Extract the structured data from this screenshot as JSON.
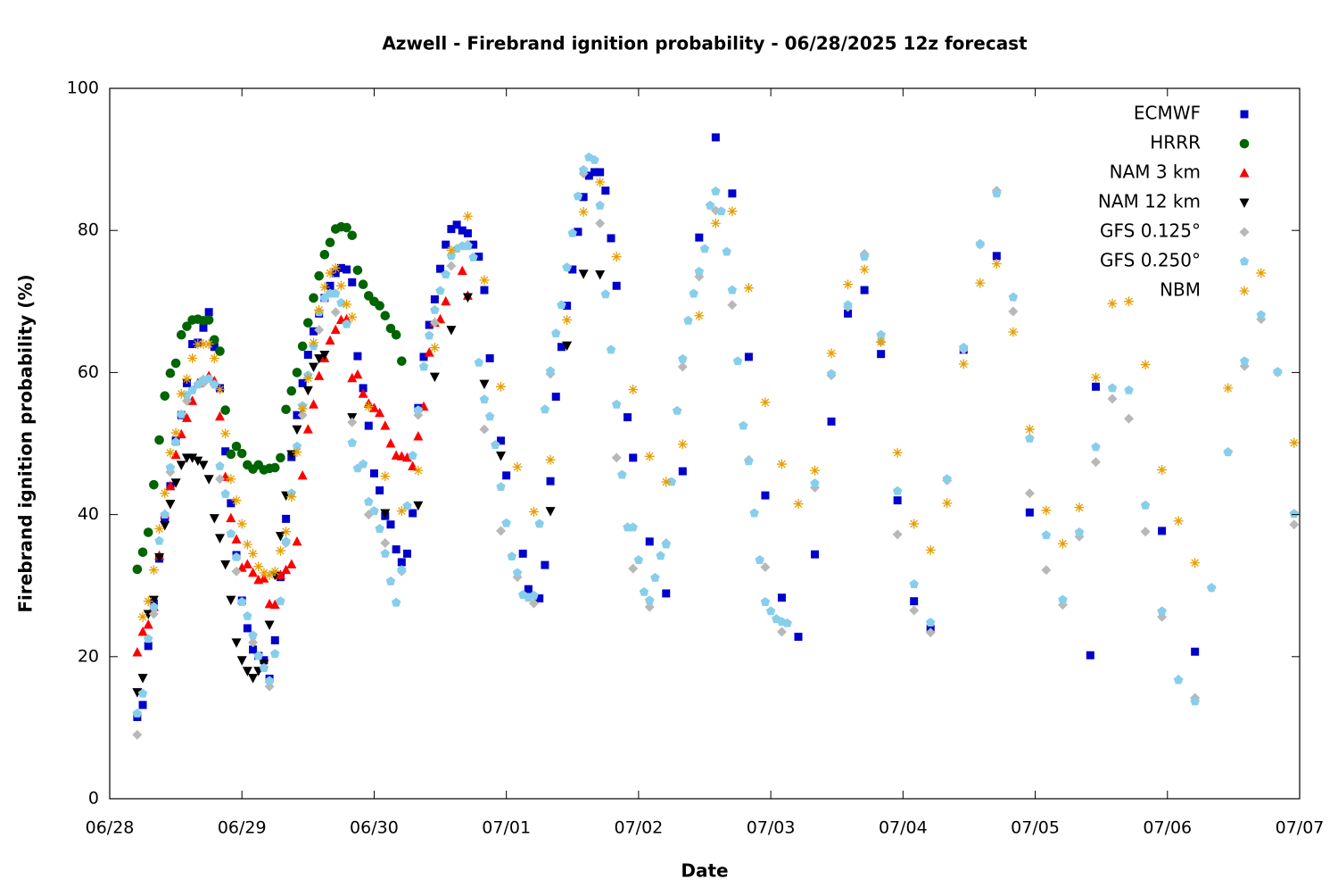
{
  "chart_data": {
    "type": "scatter",
    "title": "Azwell - Firebrand ignition probability - 06/28/2025 12z forecast",
    "x_label": "Date",
    "y_label": "Firebrand ignition probability (%)",
    "xlim": [
      0,
      216
    ],
    "xticks": [
      {
        "value": 0,
        "label": "06/28"
      },
      {
        "value": 24,
        "label": "06/29"
      },
      {
        "value": 48,
        "label": "06/30"
      },
      {
        "value": 72,
        "label": "07/01"
      },
      {
        "value": 96,
        "label": "07/02"
      },
      {
        "value": 120,
        "label": "07/03"
      },
      {
        "value": 144,
        "label": "07/04"
      },
      {
        "value": 168,
        "label": "07/05"
      },
      {
        "value": 192,
        "label": "07/06"
      },
      {
        "value": 216,
        "label": "07/07"
      }
    ],
    "ylim": [
      0,
      100
    ],
    "yticks": [
      0,
      20,
      40,
      60,
      80,
      100
    ],
    "grid": false,
    "legend": "top-right",
    "series": [
      {
        "name": "ECMWF",
        "color": "#0000cc",
        "marker": "square",
        "x": [
          5,
          6,
          7,
          8,
          9,
          10,
          11,
          12,
          13,
          14,
          15,
          16,
          17,
          18,
          19,
          20,
          21,
          22,
          23,
          24,
          25,
          26,
          27,
          28,
          29,
          30,
          31,
          32,
          33,
          34,
          35,
          36,
          37,
          38,
          39,
          40,
          41,
          42,
          43,
          44,
          45,
          46,
          47,
          48,
          49,
          50,
          51,
          52,
          53,
          54,
          55,
          56,
          57,
          58,
          59,
          60,
          61,
          62,
          63,
          64,
          65,
          66,
          67,
          68,
          69,
          71,
          72,
          75,
          76,
          78,
          79,
          80,
          81,
          82,
          83,
          84,
          85,
          86,
          87,
          88,
          89,
          90,
          91,
          92,
          94,
          95,
          98,
          101,
          104,
          107,
          110,
          113,
          116,
          119,
          122,
          125,
          128,
          131,
          134,
          137,
          140,
          143,
          146,
          149,
          155,
          161,
          167,
          178,
          179,
          191,
          197
        ],
        "values": [
          11.5,
          13.2,
          21.5,
          27.5,
          33.8,
          39.5,
          44,
          50.4,
          54,
          58.5,
          64,
          64.2,
          66.3,
          68.5,
          63.6,
          57.8,
          48.9,
          41.6,
          34.3,
          27.9,
          24,
          21,
          20.1,
          19.5,
          16.9,
          22.3,
          31.2,
          39.4,
          48.1,
          54,
          58.5,
          62.5,
          65.8,
          68.3,
          70.5,
          72.2,
          74,
          74.7,
          74.5,
          72.7,
          62.3,
          57.8,
          52.5,
          45.8,
          43.4,
          39.8,
          38.6,
          35.1,
          33.3,
          34.5,
          40.2,
          55,
          62.2,
          66.7,
          70.3,
          74.6,
          78,
          80.2,
          80.8,
          80,
          79.6,
          78,
          76.3,
          71.6,
          62,
          50.4,
          45.5,
          34.5,
          29.5,
          28.2,
          32.9,
          44.7,
          56.6,
          63.6,
          69.4,
          74.5,
          79.8,
          84.7,
          87.7,
          88.2,
          88.2,
          85.6,
          78.9,
          72.2,
          53.7,
          48,
          36.2,
          28.9,
          46.1,
          79,
          93.1,
          85.2,
          62.2,
          42.7,
          28.3,
          22.8,
          34.4,
          53.1,
          68.3,
          71.6,
          62.6,
          42,
          27.8,
          23.9,
          63.2,
          76.4,
          40.3,
          20.2,
          58,
          37.7,
          20.7
        ]
      },
      {
        "name": "HRRR",
        "color": "#006400",
        "marker": "circle",
        "x": [
          5,
          6,
          7,
          8,
          9,
          10,
          11,
          12,
          13,
          14,
          15,
          16,
          17,
          18,
          19,
          20,
          21,
          22,
          23,
          24,
          25,
          26,
          27,
          28,
          29,
          30,
          31,
          32,
          33,
          34,
          35,
          36,
          37,
          38,
          39,
          40,
          41,
          42,
          43,
          44,
          45,
          46,
          47,
          48,
          49,
          50,
          51,
          52,
          53
        ],
        "values": [
          32.3,
          34.7,
          37.5,
          44.2,
          50.5,
          56.7,
          59.9,
          61.3,
          65.3,
          66.5,
          67.4,
          67.5,
          67.3,
          67.4,
          64.6,
          63,
          54.7,
          48.5,
          49.6,
          48.6,
          47,
          46.4,
          47,
          46.3,
          46.5,
          46.6,
          48,
          54.8,
          57.4,
          60,
          63.7,
          67,
          70.5,
          73.6,
          76.6,
          78.3,
          80.2,
          80.5,
          80.4,
          79.3,
          74.4,
          72.4,
          70.8,
          70,
          69.4,
          68,
          66.2,
          65.3,
          61.6
        ]
      },
      {
        "name": "NAM 3 km",
        "color": "#ff0000",
        "marker": "triangle-up",
        "x": [
          5,
          6,
          7,
          8,
          9,
          10,
          11,
          12,
          13,
          14,
          15,
          16,
          17,
          18,
          19,
          20,
          21,
          22,
          23,
          24,
          25,
          26,
          27,
          28,
          29,
          30,
          31,
          32,
          33,
          34,
          35,
          36,
          37,
          38,
          39,
          40,
          41,
          42,
          43,
          44,
          45,
          46,
          47,
          48,
          49,
          50,
          51,
          52,
          53,
          54,
          55,
          56,
          57,
          58,
          59,
          60,
          61,
          64,
          65
        ],
        "values": [
          20.6,
          23.5,
          24.5,
          27,
          34.2,
          40,
          44,
          48.4,
          51.3,
          53.6,
          56,
          58.5,
          59,
          59.5,
          58.8,
          53.8,
          45.3,
          39.5,
          36.5,
          32.5,
          33,
          31.8,
          30.8,
          31,
          27.4,
          27.3,
          31.5,
          32.2,
          33,
          36.2,
          45.5,
          52,
          55.5,
          59.5,
          62,
          64.5,
          66,
          67.4,
          67.5,
          59.2,
          59.7,
          57,
          55.6,
          55,
          54.3,
          52.5,
          50,
          48.3,
          48.2,
          48,
          46.8,
          51,
          55.2,
          62.8,
          67,
          67.5,
          70,
          74.3,
          70.8
        ]
      },
      {
        "name": "NAM 12 km",
        "color": "#000000",
        "marker": "triangle-down",
        "x": [
          5,
          6,
          7,
          8,
          9,
          10,
          11,
          12,
          13,
          14,
          15,
          16,
          17,
          18,
          19,
          20,
          21,
          22,
          23,
          24,
          25,
          26,
          27,
          28,
          29,
          30,
          31,
          32,
          33,
          34,
          35,
          36,
          37,
          38,
          39,
          44,
          50,
          56,
          59,
          62,
          65,
          68,
          71,
          80,
          83,
          86,
          89
        ],
        "values": [
          15,
          17,
          26,
          28,
          34,
          38.5,
          41.5,
          44.5,
          47,
          48,
          48,
          47.6,
          47,
          45,
          39.5,
          36.7,
          33,
          28,
          22,
          19.5,
          18,
          17,
          18,
          19,
          24.5,
          31.5,
          37,
          42.7,
          48.5,
          52,
          55,
          57.5,
          60.8,
          62,
          62.5,
          53.7,
          40.2,
          41.3,
          59.4,
          66,
          70.6,
          58.4,
          48.3,
          40.5,
          63.8,
          73.9,
          73.8
        ]
      },
      {
        "name": "GFS 0.125°",
        "color": "#b8b8b8",
        "marker": "diamond",
        "x": [
          5,
          8,
          11,
          14,
          17,
          20,
          23,
          26,
          29,
          32,
          35,
          38,
          41,
          44,
          47,
          50,
          53,
          56,
          59,
          62,
          65,
          68,
          71,
          74,
          77,
          80,
          83,
          86,
          89,
          92,
          95,
          98,
          101,
          104,
          107,
          110,
          113,
          116,
          119,
          122,
          128,
          131,
          134,
          137,
          140,
          143,
          146,
          149,
          152,
          155,
          158,
          161,
          164,
          167,
          170,
          173,
          176,
          179,
          182,
          185,
          188,
          191,
          194,
          197,
          200,
          203,
          206,
          209,
          212,
          215
        ],
        "values": [
          9,
          26,
          46,
          56,
          58.5,
          45,
          32,
          22,
          15.8,
          36,
          54,
          66,
          68.5,
          53,
          40,
          36,
          32,
          54,
          67,
          75,
          78,
          52,
          37.7,
          31.2,
          27.5,
          59.8,
          74.8,
          88,
          81,
          48,
          32.4,
          27,
          36,
          60.8,
          73.5,
          82.8,
          69.5,
          47.7,
          32.6,
          23.5,
          43.8,
          59.6,
          69.2,
          76.7,
          64.3,
          37.2,
          26.5,
          23.4,
          44.8,
          63.2,
          78,
          85.6,
          68.6,
          43,
          32.2,
          27.3,
          36.9,
          47.4,
          56.3,
          53.5,
          37.6,
          25.6,
          16.8,
          14.2,
          29.7,
          48.8,
          60.9,
          67.5,
          60,
          38.6
        ]
      },
      {
        "name": "GFS 0.250°",
        "color": "#87ceeb",
        "marker": "pentagon",
        "x": [
          5,
          6,
          7,
          8,
          9,
          10,
          11,
          12,
          13,
          14,
          15,
          16,
          17,
          18,
          19,
          20,
          21,
          22,
          23,
          24,
          25,
          26,
          27,
          28,
          29,
          30,
          31,
          32,
          33,
          34,
          35,
          36,
          37,
          38,
          39,
          40,
          41,
          42,
          43,
          44,
          45,
          46,
          47,
          48,
          49,
          50,
          51,
          52,
          53,
          54,
          55,
          56,
          57,
          58,
          59,
          60,
          61,
          62,
          63,
          64,
          65,
          66,
          67,
          68,
          69,
          70,
          71,
          72,
          73,
          74,
          75,
          76,
          77,
          78,
          79,
          80,
          81,
          82,
          83,
          84,
          85,
          86,
          87,
          88,
          89,
          90,
          91,
          92,
          93,
          94,
          95,
          96,
          97,
          98,
          99,
          100,
          101,
          102,
          103,
          104,
          105,
          106,
          107,
          108,
          109,
          110,
          111,
          112,
          113,
          114,
          115,
          116,
          117,
          118,
          119,
          120,
          121,
          122,
          123,
          128,
          131,
          134,
          137,
          140,
          143,
          146,
          149,
          152,
          155,
          158,
          161,
          164,
          167,
          170,
          173,
          176,
          179,
          182,
          185,
          188,
          191,
          194,
          197,
          200,
          203,
          206,
          209,
          212,
          215
        ],
        "values": [
          12,
          14.8,
          22.5,
          27,
          36.3,
          40,
          46.6,
          50.2,
          54.1,
          56.8,
          57.5,
          58.3,
          59,
          59.1,
          58.3,
          46.8,
          42.9,
          37.3,
          34,
          27.7,
          25.7,
          23,
          20.1,
          18.4,
          16.6,
          20.4,
          27.8,
          36.2,
          43,
          49.6,
          55.3,
          59.6,
          63.7,
          68.5,
          70.5,
          71.1,
          71.1,
          69.8,
          66.8,
          50.1,
          46.5,
          47.1,
          41.8,
          40.5,
          38,
          34.5,
          30.6,
          27.6,
          32.2,
          41.2,
          48.3,
          54.7,
          60.8,
          65.2,
          68.8,
          71.5,
          73.8,
          76.4,
          77.4,
          77.8,
          77.8,
          76.2,
          61.4,
          56.2,
          53.8,
          49.8,
          43.9,
          38.8,
          34.1,
          31.8,
          28.7,
          28.3,
          28.6,
          38.7,
          54.8,
          60.2,
          65.5,
          69.5,
          74.8,
          79.6,
          84.8,
          88.5,
          90.3,
          89.9,
          83.5,
          71,
          63.2,
          55.5,
          45.6,
          38.2,
          38.2,
          33.6,
          29.1,
          27.9,
          31.1,
          34.2,
          35.8,
          44.6,
          54.6,
          61.9,
          67.3,
          71.1,
          74.2,
          77.4,
          83.5,
          85.5,
          82.7,
          77,
          71.6,
          61.6,
          52.5,
          47.5,
          40.2,
          33.6,
          27.7,
          26.4,
          25.3,
          24.9,
          24.7,
          44.4,
          59.8,
          69.5,
          76.3,
          65.3,
          43.3,
          30.2,
          24.8,
          45,
          63.5,
          78.1,
          85.2,
          70.6,
          50.7,
          37.1,
          28,
          37.5,
          49.5,
          57.8,
          57.5,
          41.3,
          26.4,
          16.7,
          13.7,
          29.7,
          48.8,
          61.6,
          68.1,
          60.1,
          40.1
        ]
      },
      {
        "name": "NBM",
        "color": "#e69f00",
        "marker": "asterisk",
        "x": [
          6,
          7,
          8,
          9,
          10,
          11,
          12,
          13,
          14,
          15,
          16,
          17,
          18,
          19,
          20,
          21,
          22,
          23,
          24,
          25,
          26,
          27,
          28,
          29,
          30,
          31,
          32,
          33,
          34,
          35,
          36,
          37,
          38,
          39,
          40,
          41,
          42,
          43,
          44,
          47,
          50,
          53,
          56,
          59,
          62,
          65,
          68,
          71,
          74,
          77,
          80,
          83,
          86,
          89,
          92,
          95,
          98,
          101,
          104,
          107,
          110,
          113,
          116,
          119,
          122,
          125,
          128,
          131,
          134,
          137,
          140,
          143,
          146,
          149,
          152,
          155,
          158,
          161,
          164,
          167,
          170,
          173,
          176,
          179,
          182,
          185,
          188,
          191,
          194,
          197,
          203,
          209,
          215
        ],
        "values": [
          25.6,
          27.8,
          32.2,
          38,
          43,
          48.7,
          51.5,
          57,
          59.1,
          62,
          64,
          64,
          64,
          62,
          57.6,
          51.4,
          45,
          42,
          38.7,
          35.8,
          34.5,
          32.7,
          31.8,
          31.5,
          32,
          34.9,
          37.6,
          42.5,
          48.8,
          54.9,
          59.2,
          64.2,
          68.8,
          72,
          74,
          74.7,
          72.2,
          69.6,
          67.8,
          55.2,
          45.4,
          40.5,
          46.2,
          63.5,
          77.2,
          82,
          73,
          58,
          46.7,
          40.4,
          47.7,
          67.4,
          82.6,
          86.8,
          76.3,
          57.6,
          48.2,
          44.6,
          49.9,
          68,
          81,
          82.7,
          71.9,
          55.8,
          47.1,
          41.5,
          46.2,
          62.7,
          72.4,
          74.5,
          64.3,
          48.7,
          38.7,
          35,
          41.6,
          61.2,
          72.6,
          75.3,
          65.7,
          52,
          40.6,
          35.9,
          41,
          59.3,
          69.7,
          70,
          61.1,
          46.3,
          39.1,
          33.2,
          57.8,
          74,
          50.1
        ]
      }
    ]
  }
}
